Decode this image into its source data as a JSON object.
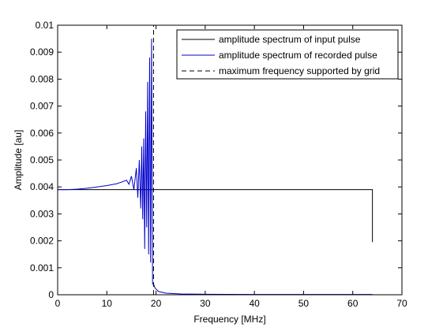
{
  "chart_data": {
    "type": "line",
    "title": "",
    "xlabel": "Frequency [MHz]",
    "ylabel": "Amplitude [au]",
    "xlim": [
      0,
      70
    ],
    "ylim": [
      0,
      0.01
    ],
    "xticks": [
      0,
      10,
      20,
      30,
      40,
      50,
      60,
      70
    ],
    "yticks": [
      0,
      0.001,
      0.002,
      0.003,
      0.004,
      0.005,
      0.006,
      0.007,
      0.008,
      0.009,
      0.01
    ],
    "xtick_labels": [
      "0",
      "10",
      "20",
      "30",
      "40",
      "50",
      "60",
      "70"
    ],
    "ytick_labels": [
      "0",
      "0.001",
      "0.002",
      "0.003",
      "0.004",
      "0.005",
      "0.006",
      "0.007",
      "0.008",
      "0.009",
      "0.01"
    ],
    "grid": false,
    "legend_position": "top-right",
    "series": [
      {
        "name": "amplitude spectrum of input pulse",
        "color": "#000000",
        "style": "solid",
        "x": [
          0,
          19.4,
          19.6,
          20,
          30,
          40,
          50,
          60,
          63.9,
          64.0,
          64.0
        ],
        "y": [
          0.0039,
          0.0039,
          0.0039,
          0.0039,
          0.0039,
          0.0039,
          0.0039,
          0.0039,
          0.0039,
          0.0039,
          0.00195
        ]
      },
      {
        "name": "amplitude spectrum of recorded pulse",
        "color": "#0000cc",
        "style": "solid",
        "x": [
          0,
          2,
          4,
          6,
          8,
          10,
          12,
          13,
          14,
          14.5,
          15,
          15.5,
          16,
          16.3,
          16.6,
          16.9,
          17.1,
          17.3,
          17.5,
          17.7,
          17.9,
          18.1,
          18.3,
          18.5,
          18.7,
          18.9,
          19.1,
          19.3,
          19.5,
          19.8,
          20.5,
          22,
          25,
          30,
          40,
          50,
          60,
          64
        ],
        "y": [
          0.0039,
          0.0039,
          0.00392,
          0.00395,
          0.004,
          0.00405,
          0.00412,
          0.00418,
          0.00425,
          0.0041,
          0.0044,
          0.0039,
          0.0047,
          0.0036,
          0.005,
          0.0032,
          0.0055,
          0.0028,
          0.0058,
          0.0017,
          0.0068,
          0.0025,
          0.0079,
          0.0015,
          0.0088,
          0.0012,
          0.0095,
          0.0004,
          0.0004,
          0.00025,
          0.00012,
          6e-05,
          3e-05,
          2e-05,
          1e-05,
          1e-05,
          1e-05,
          1e-05
        ]
      },
      {
        "name": "maximum frequency supported by grid",
        "color": "#000000",
        "style": "dashed",
        "x": [
          19.5,
          19.5
        ],
        "y": [
          0,
          0.01
        ]
      }
    ]
  }
}
